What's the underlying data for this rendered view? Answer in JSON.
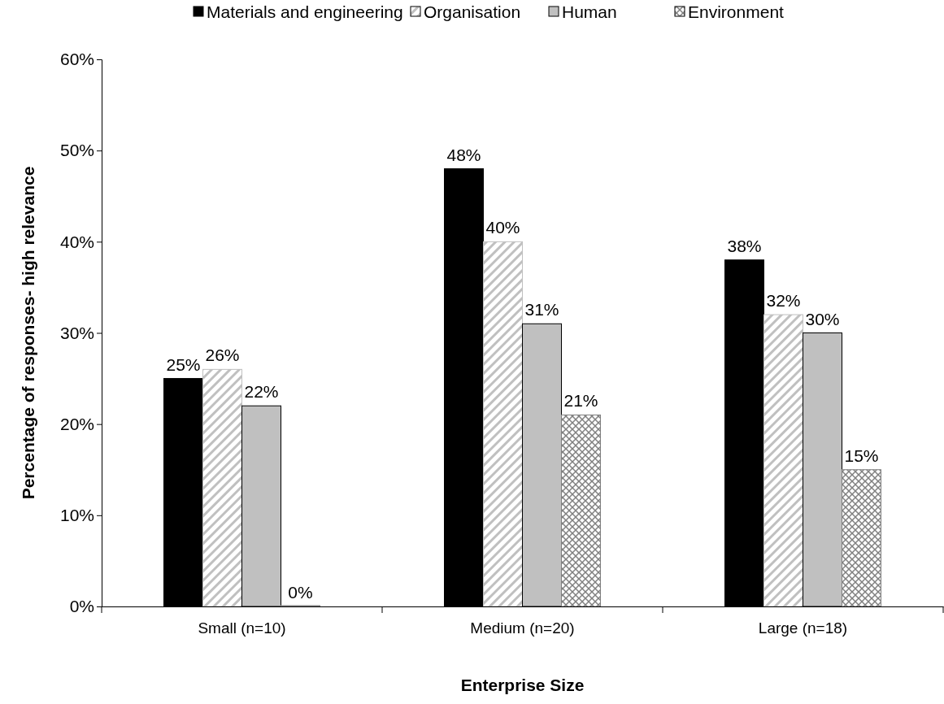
{
  "chart_data": {
    "type": "bar",
    "xlabel": "Enterprise Size",
    "ylabel": "Percentage of responses- high relevance",
    "categories": [
      "Small (n=10)",
      "Medium (n=20)",
      "Large (n=18)"
    ],
    "series": [
      {
        "name": "Materials and engineering",
        "color": "#000000",
        "values": [
          25,
          48,
          38
        ],
        "value_labels": [
          "25%",
          "48%",
          "38%"
        ]
      },
      {
        "name": "Organisation",
        "color": "#c0c0c0",
        "values": [
          26,
          40,
          32
        ],
        "value_labels": [
          "26%",
          "40%",
          "32%"
        ]
      },
      {
        "name": "Human",
        "color": "#c0c0c0",
        "values": [
          22,
          31,
          30
        ],
        "value_labels": [
          "22%",
          "31%",
          "30%"
        ]
      },
      {
        "name": "Environment",
        "color": "#808080",
        "values": [
          0,
          21,
          15
        ],
        "value_labels": [
          "0%",
          "21%",
          "15%"
        ]
      }
    ],
    "ylim": [
      0,
      60
    ],
    "yticks": [
      {
        "value": 0,
        "label": "0%"
      },
      {
        "value": 10,
        "label": "10%"
      },
      {
        "value": 20,
        "label": "20%"
      },
      {
        "value": 30,
        "label": "30%"
      },
      {
        "value": 40,
        "label": "40%"
      },
      {
        "value": 50,
        "label": "50%"
      },
      {
        "value": 60,
        "label": "60%"
      }
    ],
    "grid": false,
    "legend": "top"
  }
}
